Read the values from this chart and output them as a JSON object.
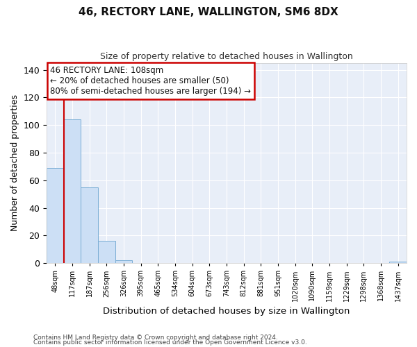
{
  "title": "46, RECTORY LANE, WALLINGTON, SM6 8DX",
  "subtitle": "Size of property relative to detached houses in Wallington",
  "xlabel": "Distribution of detached houses by size in Wallington",
  "ylabel": "Number of detached properties",
  "bar_color": "#ccdff5",
  "bar_edge_color": "#7aadd4",
  "background_color": "#e8eef8",
  "fig_background_color": "#ffffff",
  "grid_color": "#ffffff",
  "categories": [
    "48sqm",
    "117sqm",
    "187sqm",
    "256sqm",
    "326sqm",
    "395sqm",
    "465sqm",
    "534sqm",
    "604sqm",
    "673sqm",
    "743sqm",
    "812sqm",
    "881sqm",
    "951sqm",
    "1020sqm",
    "1090sqm",
    "1159sqm",
    "1229sqm",
    "1298sqm",
    "1368sqm",
    "1437sqm"
  ],
  "values": [
    69,
    104,
    55,
    16,
    2,
    0,
    0,
    0,
    0,
    0,
    0,
    0,
    0,
    0,
    0,
    0,
    0,
    0,
    0,
    0,
    1
  ],
  "red_line_x": 0.5,
  "red_line_color": "#cc0000",
  "annotation_line1": "46 RECTORY LANE: 108sqm",
  "annotation_line2": "← 20% of detached houses are smaller (50)",
  "annotation_line3": "80% of semi-detached houses are larger (194) →",
  "annotation_box_color": "#ffffff",
  "annotation_box_edge_color": "#cc0000",
  "ylim": [
    0,
    145
  ],
  "yticks": [
    0,
    20,
    40,
    60,
    80,
    100,
    120,
    140
  ],
  "footnote1": "Contains HM Land Registry data © Crown copyright and database right 2024.",
  "footnote2": "Contains public sector information licensed under the Open Government Licence v3.0."
}
